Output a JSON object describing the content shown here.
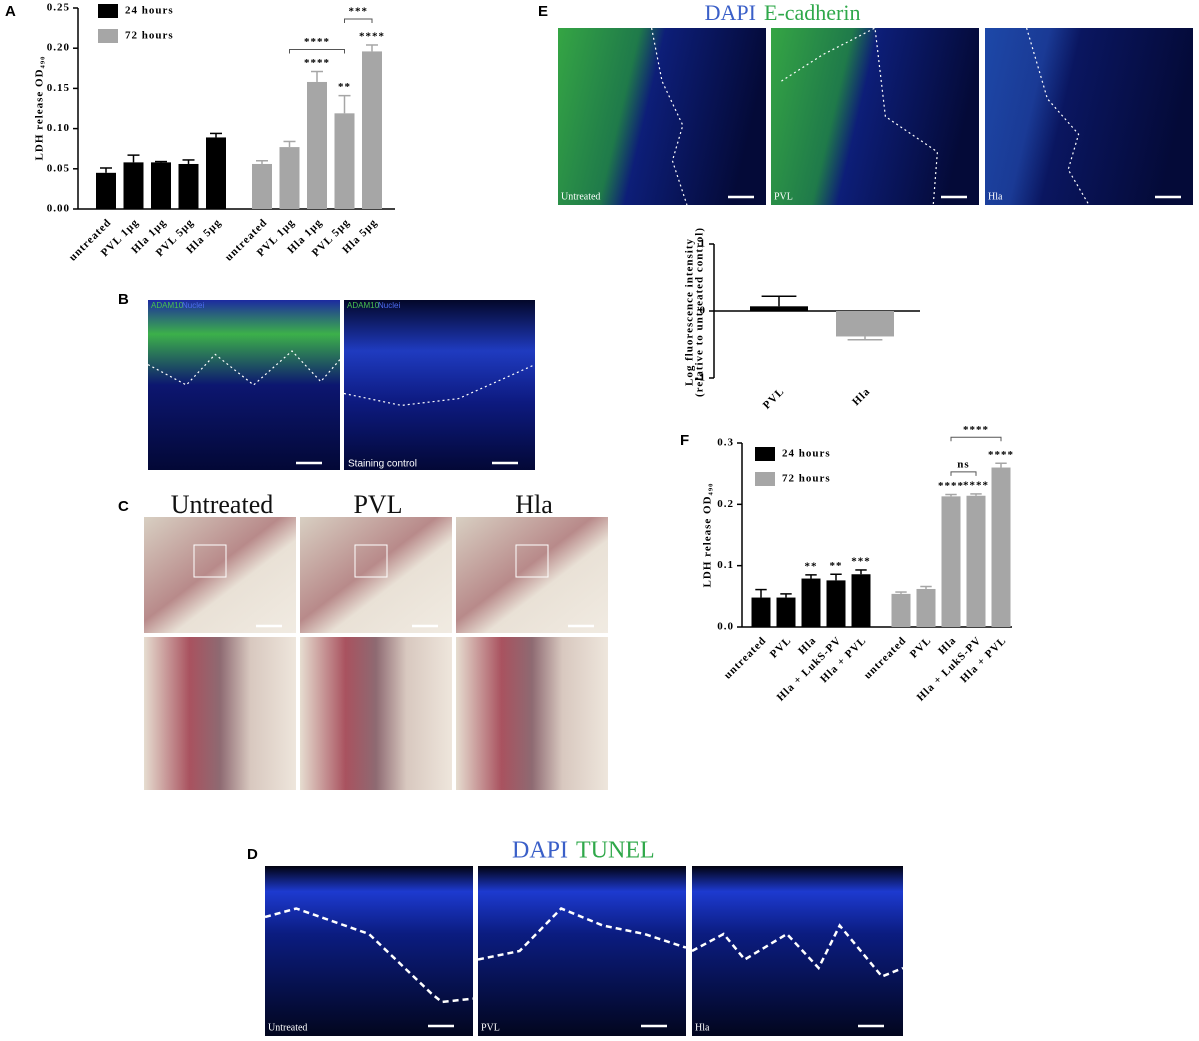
{
  "figure": {
    "panel_letters": [
      "A",
      "B",
      "C",
      "D",
      "E",
      "F"
    ],
    "B": {
      "stain": "ADAM10",
      "counterstain": "Nuclei",
      "caption": "Staining control"
    },
    "C": {
      "titles": [
        "Untreated",
        "PVL",
        "Hla"
      ]
    },
    "D": {
      "stain": "DAPI",
      "marker": "TUNEL",
      "captions": [
        "Untreated",
        "PVL",
        "Hla"
      ]
    },
    "E": {
      "stain": "DAPI",
      "marker": "E-cadherin",
      "captions": [
        "Untreated",
        "PVL",
        "Hla"
      ]
    }
  },
  "chart_data": [
    {
      "type": "bar",
      "ylabel": "LDH release OD₄₉₀",
      "categories": [
        "untreated",
        "PVL 1μg",
        "Hla 1μg",
        "PVL 5μg",
        "Hla 5μg"
      ],
      "series": [
        {
          "name": "24 hours",
          "color": "#000000",
          "values": [
            0.045,
            0.058,
            0.058,
            0.056,
            0.089
          ],
          "errors": [
            0.006,
            0.009,
            0.001,
            0.005,
            0.005
          ]
        },
        {
          "name": "72 hours",
          "color": "#a6a6a6",
          "values": [
            0.056,
            0.077,
            0.158,
            0.119,
            0.196
          ],
          "errors": [
            0.004,
            0.007,
            0.013,
            0.022,
            0.008
          ],
          "significance": [
            null,
            null,
            "****",
            "**",
            "****"
          ],
          "brackets": [
            {
              "label": "****",
              "between": [
                "PVL 1μg",
                "PVL 5μg"
              ]
            },
            {
              "label": "***",
              "between": [
                "PVL 5μg",
                "Hla 5μg"
              ]
            }
          ]
        }
      ],
      "ylim": [
        0,
        0.25
      ],
      "yticks": [
        {
          "value": 0,
          "label": "0.00"
        },
        {
          "value": 0.05,
          "label": "0.05"
        },
        {
          "value": 0.1,
          "label": "0.10"
        },
        {
          "value": 0.15,
          "label": "0.15"
        },
        {
          "value": 0.2,
          "label": "0.20"
        },
        {
          "value": 0.25,
          "label": "0.25"
        }
      ],
      "legend": "upper left"
    },
    {
      "type": "bar",
      "ylabel": [
        "Log fluorescence intensity",
        "(relative to untreated control)"
      ],
      "categories": [
        "PVL",
        "Hla"
      ],
      "values": [
        0.07,
        -0.38
      ],
      "errors": [
        0.15,
        0.05
      ],
      "colors": [
        "#000000",
        "#a6a6a6"
      ],
      "ylim": [
        -1,
        1
      ],
      "yticks": [
        -1,
        0,
        1
      ]
    },
    {
      "type": "bar",
      "ylabel": "LDH release OD₄₉₀",
      "categories": [
        "untreated",
        "PVL",
        "Hla",
        "Hla + LukS-PV",
        "Hla + PVL"
      ],
      "series": [
        {
          "name": "24 hours",
          "color": "#000000",
          "values": [
            0.048,
            0.048,
            0.079,
            0.076,
            0.086
          ],
          "errors": [
            0.013,
            0.006,
            0.006,
            0.01,
            0.007
          ],
          "significance": [
            null,
            null,
            "**",
            "**",
            "***"
          ]
        },
        {
          "name": "72 hours",
          "color": "#a6a6a6",
          "values": [
            0.054,
            0.062,
            0.213,
            0.214,
            0.26
          ],
          "errors": [
            0.003,
            0.004,
            0.003,
            0.003,
            0.007
          ],
          "significance": [
            null,
            null,
            "****",
            "****",
            "****"
          ],
          "brackets": [
            {
              "label": "ns",
              "between": [
                "Hla",
                "Hla + LukS-PV"
              ]
            },
            {
              "label": "****",
              "between": [
                "Hla",
                "Hla + PVL"
              ]
            }
          ]
        }
      ],
      "ylim": [
        0,
        0.3
      ],
      "yticks": [
        {
          "value": 0,
          "label": "0.0"
        },
        0.1,
        0.2,
        0.3
      ],
      "legend": "upper left"
    }
  ]
}
